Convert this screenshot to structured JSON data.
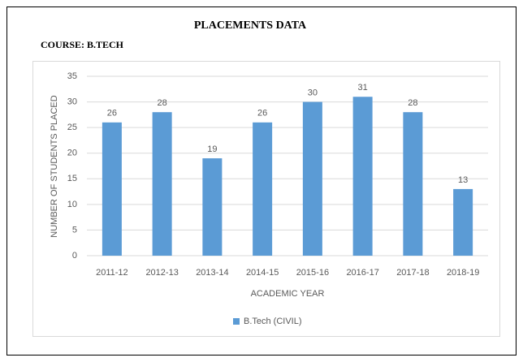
{
  "chart_data": {
    "type": "bar",
    "title": "PLACEMENTS DATA",
    "subtitle": "COURSE: B.TECH",
    "x_label": "ACADEMIC YEAR",
    "y_label": "NUMBER OF STUDENTS PLACED",
    "categories": [
      "2011-12",
      "2012-13",
      "2013-14",
      "2014-15",
      "2015-16",
      "2016-17",
      "2017-18",
      "2018-19"
    ],
    "series": [
      {
        "name": "B.Tech (CIVIL)",
        "color": "#5b9bd5",
        "values": [
          26,
          28,
          19,
          26,
          30,
          31,
          28,
          13
        ]
      }
    ],
    "ylim": [
      0,
      35
    ],
    "yticks": [
      0,
      5,
      10,
      15,
      20,
      25,
      30,
      35
    ],
    "grid": true,
    "legend": "bottom"
  }
}
